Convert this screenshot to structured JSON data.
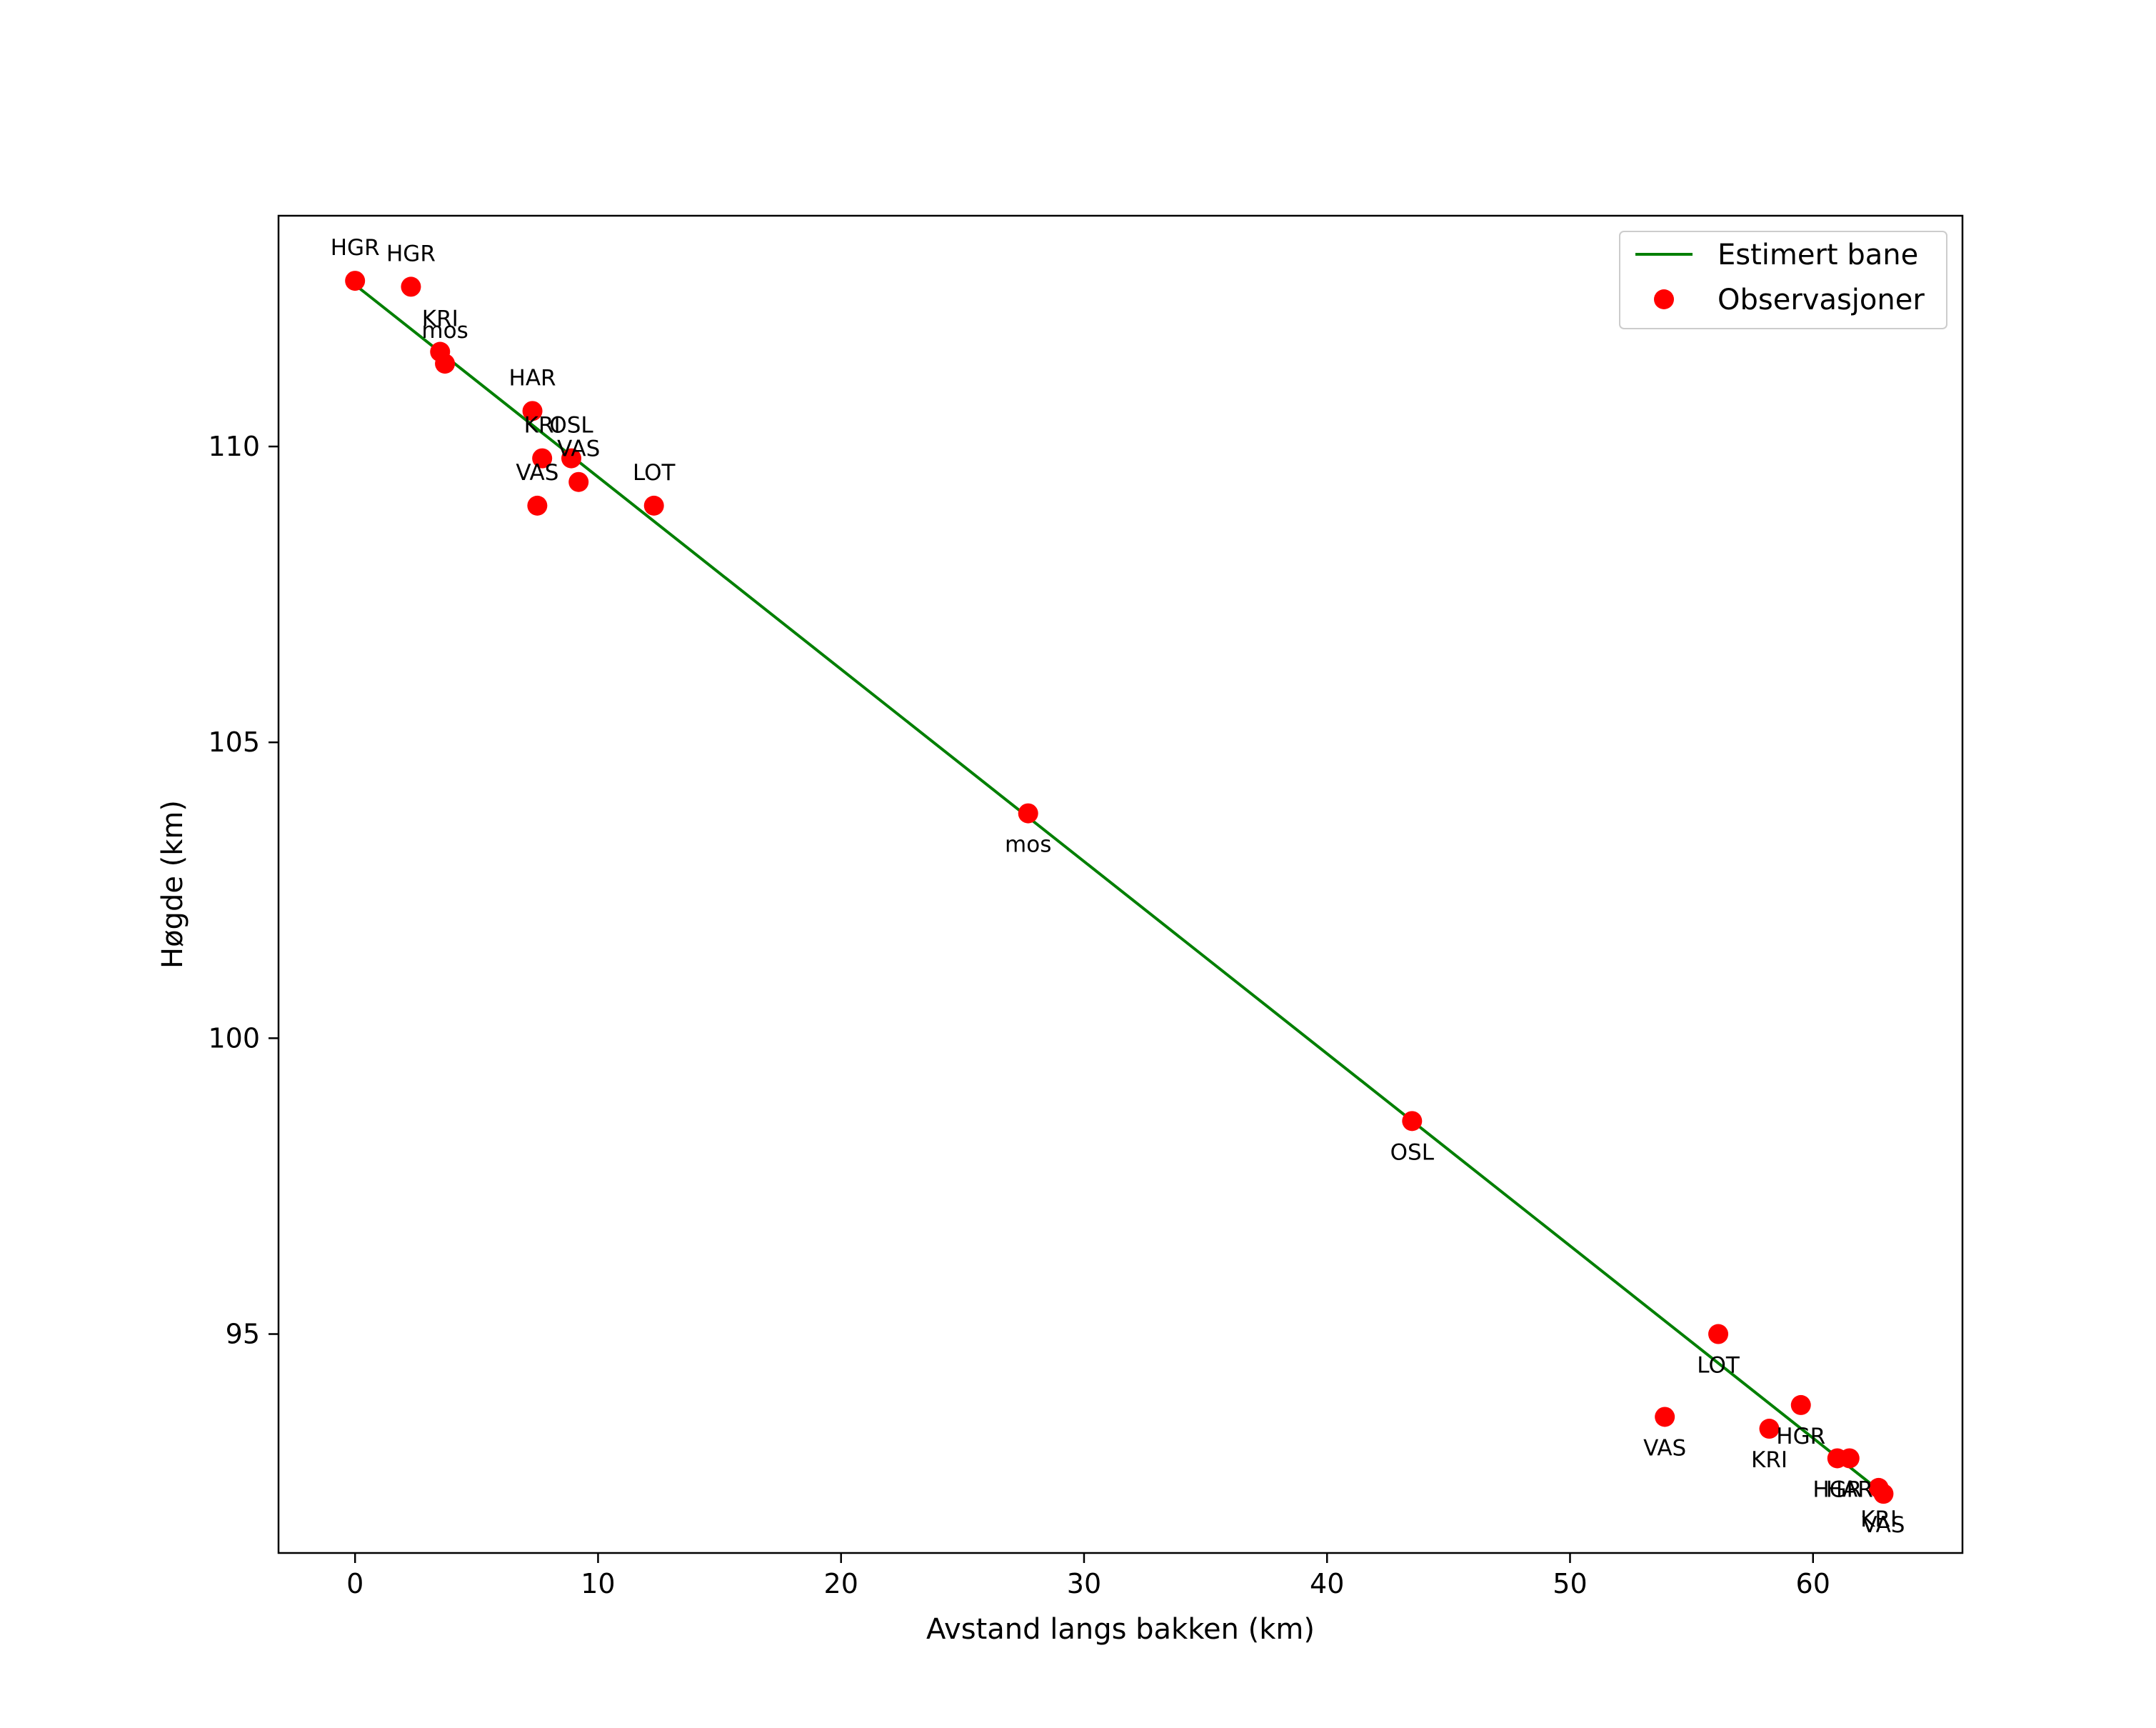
{
  "chart_data": {
    "type": "scatter",
    "title": "",
    "xlabel": "Avstand langs bakken (km)",
    "ylabel": "Høgde (km)",
    "xlim": [
      -3.15,
      66.15
    ],
    "ylim": [
      91.3,
      113.9
    ],
    "xticks": [
      0,
      10,
      20,
      30,
      40,
      50,
      60
    ],
    "yticks": [
      95,
      100,
      105,
      110
    ],
    "legend": {
      "position": "top-right",
      "entries": [
        "Estimert bane",
        "Observasjoner"
      ]
    },
    "colors": {
      "line": "#007f00",
      "points": "#ff0000"
    },
    "series": [
      {
        "name": "Estimert bane",
        "kind": "line",
        "x": [
          0.1,
          62.9
        ],
        "y": [
          112.7,
          92.3
        ]
      },
      {
        "name": "Observasjoner",
        "kind": "scatter",
        "points": [
          {
            "x": 0.0,
            "y": 112.8,
            "label": "HGR",
            "pos": "above"
          },
          {
            "x": 2.3,
            "y": 112.7,
            "label": "HGR",
            "pos": "above"
          },
          {
            "x": 3.5,
            "y": 111.6,
            "label": "KRI",
            "pos": "above"
          },
          {
            "x": 3.7,
            "y": 111.4,
            "label": "mos",
            "pos": "above"
          },
          {
            "x": 7.3,
            "y": 110.6,
            "label": "HAR",
            "pos": "above"
          },
          {
            "x": 7.7,
            "y": 109.8,
            "label": "KRI",
            "pos": "above"
          },
          {
            "x": 8.9,
            "y": 109.8,
            "label": "OSL",
            "pos": "above"
          },
          {
            "x": 9.2,
            "y": 109.4,
            "label": "VAS",
            "pos": "above"
          },
          {
            "x": 7.5,
            "y": 109.0,
            "label": "VAS",
            "pos": "above"
          },
          {
            "x": 12.3,
            "y": 109.0,
            "label": "LOT",
            "pos": "above"
          },
          {
            "x": 27.7,
            "y": 103.8,
            "label": "mos",
            "pos": "below"
          },
          {
            "x": 43.5,
            "y": 98.6,
            "label": "OSL",
            "pos": "below"
          },
          {
            "x": 56.1,
            "y": 95.0,
            "label": "LOT",
            "pos": "below"
          },
          {
            "x": 53.9,
            "y": 93.6,
            "label": "VAS",
            "pos": "below"
          },
          {
            "x": 59.5,
            "y": 93.8,
            "label": "HGR",
            "pos": "below"
          },
          {
            "x": 58.2,
            "y": 93.4,
            "label": "KRI",
            "pos": "below"
          },
          {
            "x": 61.0,
            "y": 92.9,
            "label": "HGR",
            "pos": "below"
          },
          {
            "x": 61.5,
            "y": 92.9,
            "label": "HAR",
            "pos": "below"
          },
          {
            "x": 62.7,
            "y": 92.4,
            "label": "KRI",
            "pos": "below"
          },
          {
            "x": 62.9,
            "y": 92.3,
            "label": "VAS",
            "pos": "below"
          }
        ]
      }
    ]
  }
}
